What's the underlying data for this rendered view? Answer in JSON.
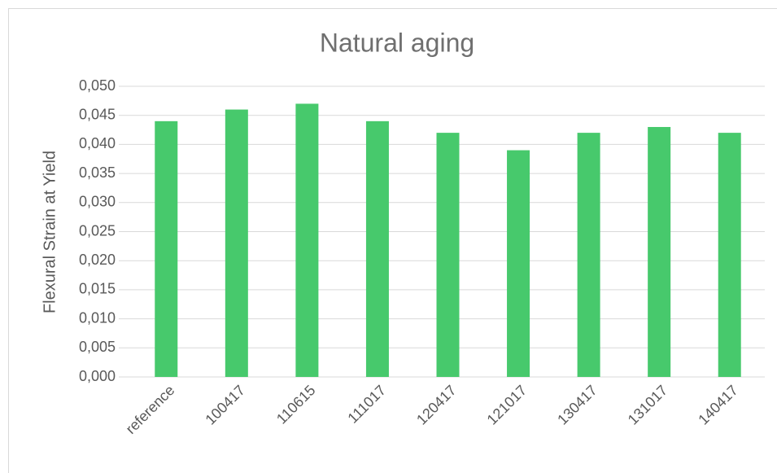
{
  "chart_data": {
    "type": "bar",
    "title": "Natural aging",
    "y_label": "Flexural Strain at Yield",
    "categories": [
      "reference",
      "100417",
      "110615",
      "111017",
      "120417",
      "121017",
      "130417",
      "131017",
      "140417"
    ],
    "values": [
      0.044,
      0.046,
      0.047,
      0.044,
      0.042,
      0.039,
      0.042,
      0.043,
      0.042
    ],
    "color": "#47c96c",
    "ylim": [
      0,
      0.05
    ],
    "yticks": [
      {
        "value": 0,
        "label": "0,000"
      },
      {
        "value": 0.005,
        "label": "0,005"
      },
      {
        "value": 0.01,
        "label": "0,010"
      },
      {
        "value": 0.015,
        "label": "0,015"
      },
      {
        "value": 0.02,
        "label": "0,020"
      },
      {
        "value": 0.025,
        "label": "0,025"
      },
      {
        "value": 0.03,
        "label": "0,030"
      },
      {
        "value": 0.035,
        "label": "0,035"
      },
      {
        "value": 0.04,
        "label": "0,040"
      },
      {
        "value": 0.045,
        "label": "0,045"
      },
      {
        "value": 0.05,
        "label": "0,050"
      }
    ],
    "grid": true
  }
}
